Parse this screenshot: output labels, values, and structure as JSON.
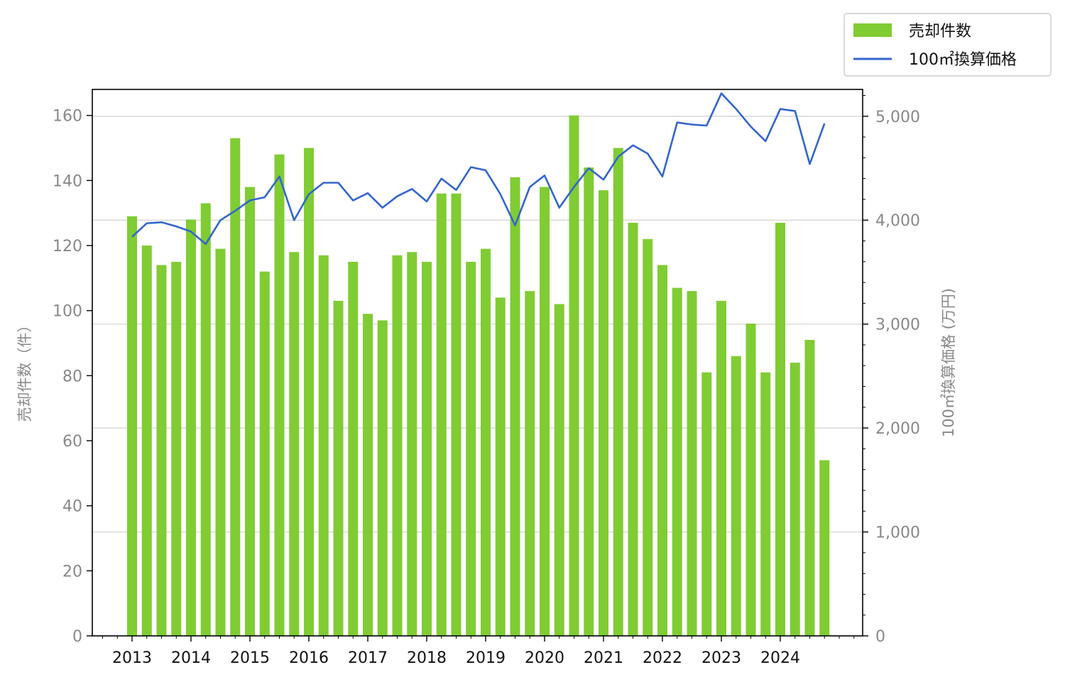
{
  "chart_data": {
    "type": "bar",
    "title": "",
    "xlabel": "",
    "ylabel": "売却件数（件）",
    "y2label": "100㎡換算価格 (万円)",
    "x_tick_labels": [
      "2013",
      "2014",
      "2015",
      "2016",
      "2017",
      "2018",
      "2019",
      "2020",
      "2021",
      "2022",
      "2023",
      "2024"
    ],
    "ylim": [
      0,
      168
    ],
    "y2lim": [
      0,
      5258
    ],
    "y_ticks": [
      0,
      20,
      40,
      60,
      80,
      100,
      120,
      140,
      160
    ],
    "y2_ticks": [
      0,
      1000,
      2000,
      3000,
      4000,
      5000
    ],
    "y2_tick_labels": [
      "0",
      "1,000",
      "2,000",
      "3,000",
      "4,000",
      "5,000"
    ],
    "grid": "horizontal, right axis",
    "legend_position": "top-right",
    "x": [
      "2013Q1",
      "2013Q2",
      "2013Q3",
      "2013Q4",
      "2014Q1",
      "2014Q2",
      "2014Q3",
      "2014Q4",
      "2015Q1",
      "2015Q2",
      "2015Q3",
      "2015Q4",
      "2016Q1",
      "2016Q2",
      "2016Q3",
      "2016Q4",
      "2017Q1",
      "2017Q2",
      "2017Q3",
      "2017Q4",
      "2018Q1",
      "2018Q2",
      "2018Q3",
      "2018Q4",
      "2019Q1",
      "2019Q2",
      "2019Q3",
      "2019Q4",
      "2020Q1",
      "2020Q2",
      "2020Q3",
      "2020Q4",
      "2021Q1",
      "2021Q2",
      "2021Q3",
      "2021Q4",
      "2022Q1",
      "2022Q2",
      "2022Q3",
      "2022Q4",
      "2023Q1",
      "2023Q2",
      "2023Q3",
      "2023Q4",
      "2024Q1",
      "2024Q2",
      "2024Q3",
      "2024Q4"
    ],
    "series": [
      {
        "name": "売却件数",
        "type": "bar",
        "axis": "left",
        "color": "#80cc33",
        "values": [
          129,
          120,
          114,
          115,
          128,
          133,
          119,
          153,
          138,
          112,
          148,
          118,
          150,
          117,
          103,
          115,
          99,
          97,
          117,
          118,
          115,
          136,
          136,
          115,
          119,
          104,
          141,
          106,
          138,
          102,
          160,
          144,
          137,
          150,
          127,
          122,
          114,
          107,
          106,
          81,
          103,
          86,
          96,
          81,
          127,
          84,
          91,
          54
        ]
      },
      {
        "name": "100㎡換算価格",
        "type": "line",
        "axis": "right",
        "color": "#3366cc",
        "values": [
          3840,
          3970,
          3980,
          3940,
          3890,
          3770,
          4000,
          4090,
          4190,
          4220,
          4420,
          4000,
          4250,
          4360,
          4360,
          4190,
          4260,
          4120,
          4230,
          4300,
          4180,
          4400,
          4290,
          4510,
          4480,
          4250,
          3950,
          4320,
          4430,
          4120,
          4320,
          4500,
          4390,
          4610,
          4720,
          4640,
          4420,
          4940,
          4920,
          4910,
          5220,
          5070,
          4900,
          4760,
          5070,
          5050,
          4540,
          4930
        ]
      }
    ]
  }
}
